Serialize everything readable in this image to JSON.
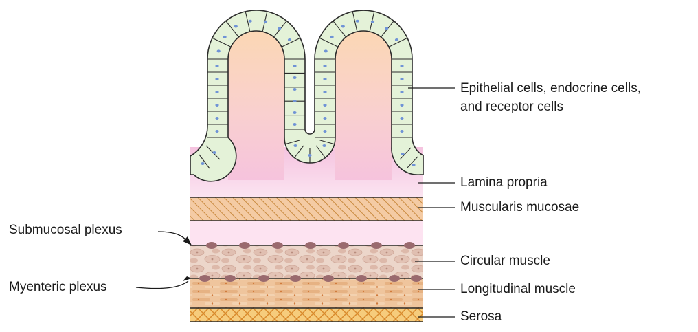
{
  "labels": {
    "epithelial_line1": "Epithelial cells, endocrine cells,",
    "epithelial_line2": "and receptor cells",
    "lamina_propria": "Lamina propria",
    "muscularis_mucosae": "Muscularis mucosae",
    "circular_muscle": "Circular muscle",
    "longitudinal_muscle": "Longitudinal muscle",
    "serosa": "Serosa",
    "submucosal_plexus": "Submucosal plexus",
    "myenteric_plexus": "Myenteric plexus"
  },
  "colors": {
    "epithelium_cell": "#e4f2d8",
    "cell_nucleus": "#6f93d6",
    "villus_core_top": "#fbd8b6",
    "villus_core_bottom": "#f7c4dd",
    "lamina_propria": "#f7c6e0",
    "muscularis_mucosae": "#f3c9a0",
    "submucosa": "#fde3f1",
    "circular_muscle": "#ead2c5",
    "longitudinal_muscle": "#eebf94",
    "serosa": "#f6cc7c",
    "plexus_node": "#9a6a6e",
    "outline": "#2b2b2b"
  }
}
